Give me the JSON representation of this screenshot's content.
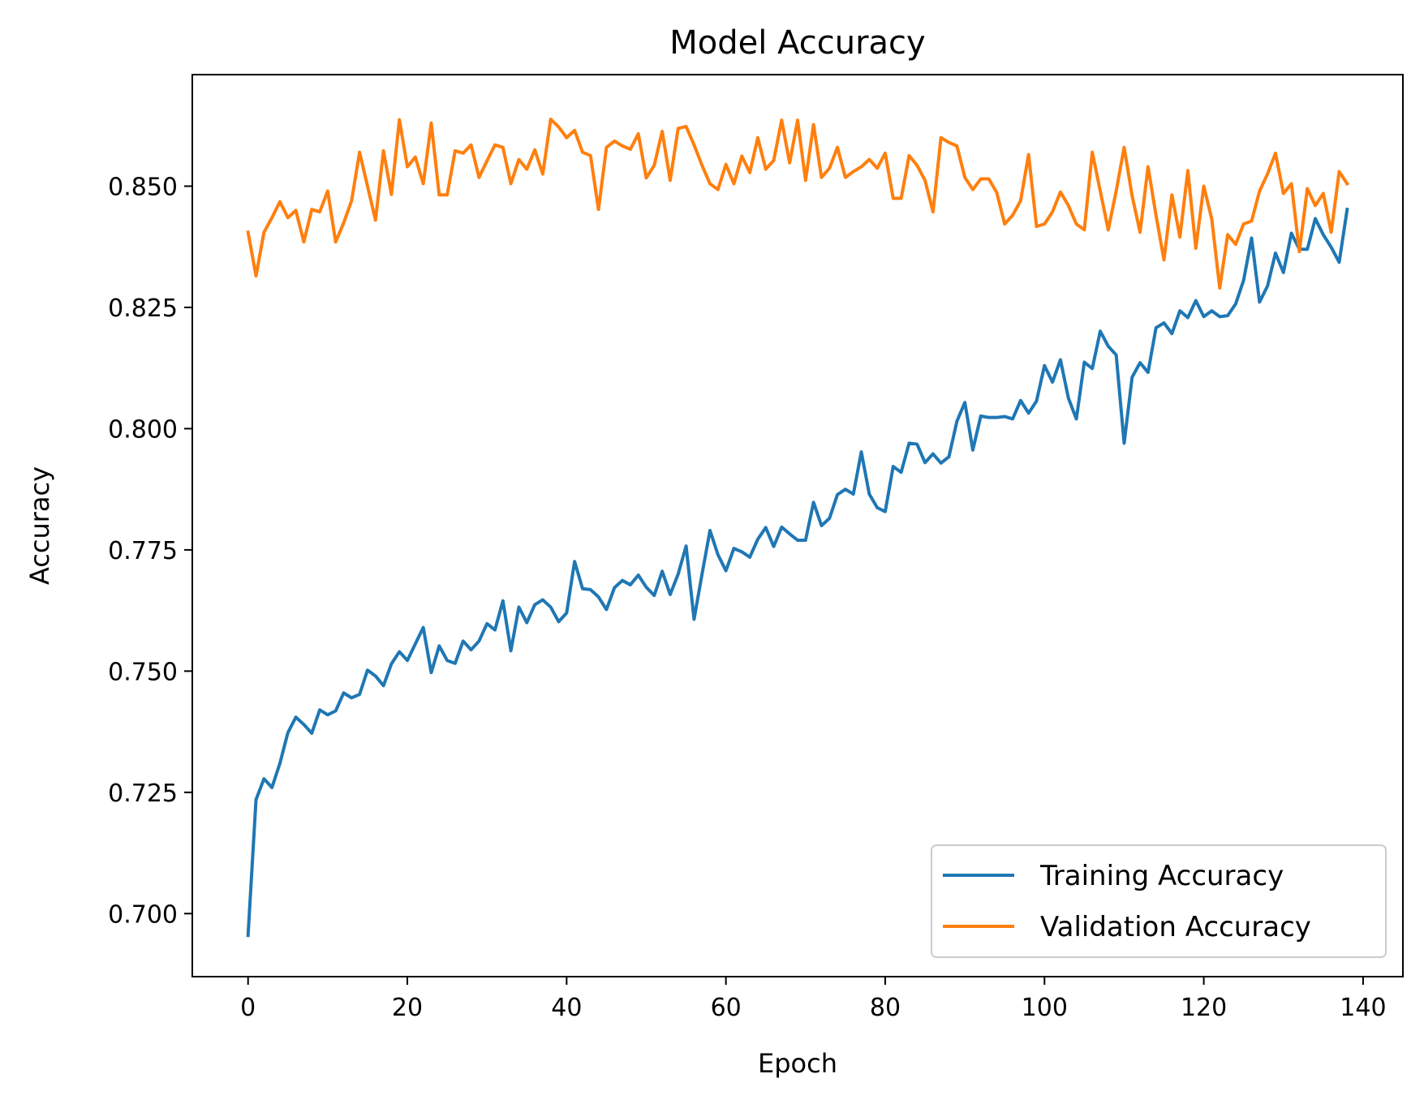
{
  "chart_data": {
    "type": "line",
    "title": "Model Accuracy",
    "xlabel": "Epoch",
    "ylabel": "Accuracy",
    "xlim": [
      -7,
      145
    ],
    "ylim": [
      0.687,
      0.873
    ],
    "xticks": [
      0,
      20,
      40,
      60,
      80,
      100,
      120,
      140
    ],
    "xtick_labels": [
      "0",
      "20",
      "40",
      "60",
      "80",
      "100",
      "120",
      "140"
    ],
    "yticks": [
      0.7,
      0.725,
      0.75,
      0.775,
      0.8,
      0.825,
      0.85
    ],
    "ytick_labels": [
      "0.700",
      "0.725",
      "0.750",
      "0.775",
      "0.800",
      "0.825",
      "0.850"
    ],
    "grid": false,
    "legend_position": "lower-right",
    "series": [
      {
        "name": "Training Accuracy",
        "color": "#1f77b4",
        "x_start": 0,
        "values": [
          0.6955,
          0.7235,
          0.7278,
          0.726,
          0.731,
          0.7373,
          0.7405,
          0.739,
          0.7372,
          0.742,
          0.741,
          0.7418,
          0.7455,
          0.7445,
          0.7452,
          0.7502,
          0.749,
          0.747,
          0.7515,
          0.754,
          0.7522,
          0.7556,
          0.759,
          0.7497,
          0.7552,
          0.7522,
          0.7516,
          0.7562,
          0.7544,
          0.7562,
          0.7598,
          0.7585,
          0.7645,
          0.7542,
          0.7632,
          0.76,
          0.7637,
          0.7647,
          0.7632,
          0.7602,
          0.762,
          0.7726,
          0.767,
          0.7668,
          0.7653,
          0.7627,
          0.7672,
          0.7687,
          0.7678,
          0.7698,
          0.7673,
          0.7656,
          0.7706,
          0.7658,
          0.77,
          0.7758,
          0.7607,
          0.77,
          0.779,
          0.774,
          0.7707,
          0.7753,
          0.7746,
          0.7735,
          0.7772,
          0.7796,
          0.7757,
          0.7797,
          0.7783,
          0.777,
          0.777,
          0.7848,
          0.78,
          0.7815,
          0.7864,
          0.7875,
          0.7865,
          0.7952,
          0.7865,
          0.7837,
          0.7829,
          0.7922,
          0.791,
          0.797,
          0.7968,
          0.793,
          0.7948,
          0.7929,
          0.7942,
          0.8015,
          0.8054,
          0.7956,
          0.8026,
          0.8023,
          0.8023,
          0.8025,
          0.802,
          0.8058,
          0.8032,
          0.8057,
          0.813,
          0.8096,
          0.8142,
          0.8063,
          0.802,
          0.8137,
          0.8124,
          0.8201,
          0.817,
          0.8152,
          0.797,
          0.8106,
          0.8136,
          0.8116,
          0.8208,
          0.8218,
          0.8196,
          0.8243,
          0.8229,
          0.8264,
          0.8231,
          0.8243,
          0.8231,
          0.8233,
          0.8257,
          0.8306,
          0.8393,
          0.8261,
          0.8294,
          0.8362,
          0.8322,
          0.8403,
          0.837,
          0.837,
          0.8433,
          0.84,
          0.8374,
          0.8343,
          0.8452
        ]
      },
      {
        "name": "Validation Accuracy",
        "color": "#ff7f0e",
        "x_start": 0,
        "values": [
          0.8405,
          0.8315,
          0.8405,
          0.8435,
          0.8468,
          0.8435,
          0.845,
          0.8385,
          0.8452,
          0.8447,
          0.849,
          0.8385,
          0.8424,
          0.847,
          0.857,
          0.85,
          0.843,
          0.8573,
          0.8483,
          0.8637,
          0.854,
          0.856,
          0.8505,
          0.863,
          0.8482,
          0.8482,
          0.8573,
          0.8568,
          0.8585,
          0.8518,
          0.8552,
          0.8585,
          0.858,
          0.8505,
          0.8555,
          0.8535,
          0.8575,
          0.8525,
          0.8638,
          0.8622,
          0.86,
          0.8615,
          0.857,
          0.8563,
          0.8452,
          0.858,
          0.8593,
          0.8583,
          0.8576,
          0.8608,
          0.8517,
          0.8543,
          0.8613,
          0.8512,
          0.8619,
          0.8623,
          0.8585,
          0.8543,
          0.8505,
          0.8493,
          0.8545,
          0.8505,
          0.8562,
          0.8528,
          0.86,
          0.8535,
          0.8553,
          0.8636,
          0.8548,
          0.8636,
          0.8512,
          0.8627,
          0.8518,
          0.8537,
          0.858,
          0.8518,
          0.853,
          0.854,
          0.8555,
          0.8537,
          0.8568,
          0.8475,
          0.8475,
          0.8563,
          0.8543,
          0.8512,
          0.8447,
          0.86,
          0.859,
          0.8583,
          0.8518,
          0.8493,
          0.8515,
          0.8515,
          0.8487,
          0.8422,
          0.844,
          0.847,
          0.8565,
          0.8417,
          0.8422,
          0.8447,
          0.8488,
          0.846,
          0.8422,
          0.841,
          0.857,
          0.849,
          0.841,
          0.849,
          0.858,
          0.848,
          0.8405,
          0.854,
          0.844,
          0.8348,
          0.8482,
          0.8395,
          0.8532,
          0.8372,
          0.85,
          0.8432,
          0.829,
          0.84,
          0.838,
          0.8422,
          0.8428,
          0.849,
          0.8525,
          0.8568,
          0.8485,
          0.8505,
          0.8365,
          0.8495,
          0.846,
          0.8485,
          0.8405,
          0.853,
          0.8505
        ]
      }
    ]
  }
}
